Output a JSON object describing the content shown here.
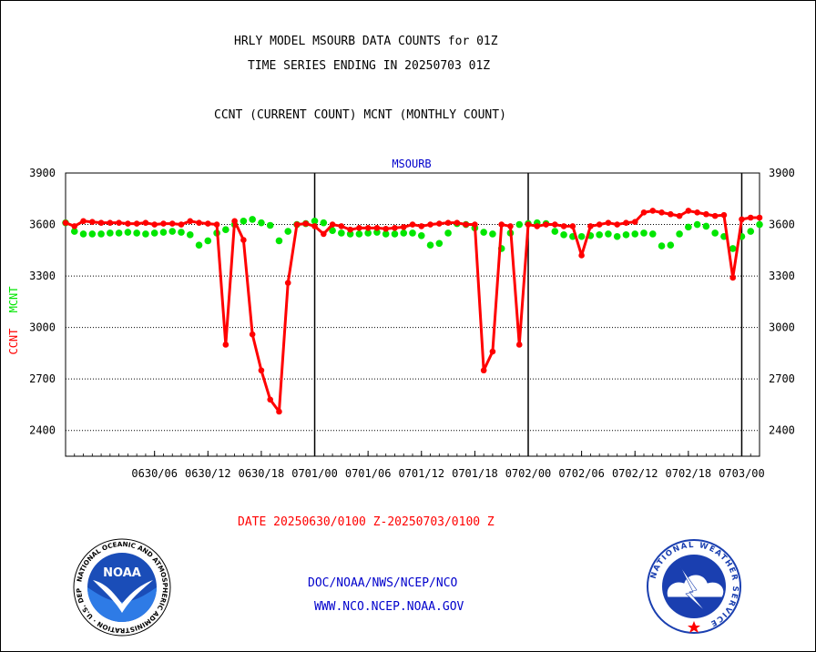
{
  "header": {
    "title_line1": "HRLY MODEL MSOURB DATA COUNTS for 01Z",
    "title_line2": "TIME SERIES ENDING IN 20250703 01Z",
    "subtitle": "CCNT (CURRENT COUNT) MCNT (MONTHLY COUNT)"
  },
  "footer": {
    "date_range": "DATE 20250630/0100 Z-20250703/0100 Z",
    "link1": "DOC/NOAA/NWS/NCEP/NCO",
    "link2": "WWW.NCO.NCEP.NOAA.GOV"
  },
  "logos": {
    "noaa_text": "NOAA",
    "noaa_ring": "NATIONAL OCEANIC AND ATMOSPHERIC ADMINISTRATION · U.S. DEPARTMENT OF COMMERCE ·",
    "nws_ring": "NATIONAL WEATHER SERVICE"
  },
  "colors": {
    "ccnt": "#ff0000",
    "mcnt": "#00e600",
    "panel_title": "#0000cc",
    "link": "#0000cc"
  },
  "chart_data": {
    "type": "line",
    "panel_title": "MSOURB",
    "ylabel_parts": [
      {
        "text": "CCNT",
        "color": "#ff0000"
      },
      {
        "text": "MCNT",
        "color": "#00e600"
      }
    ],
    "ylim": [
      2250,
      3900
    ],
    "yticks": [
      2400,
      2700,
      3000,
      3300,
      3600,
      3900
    ],
    "x_range_hours": [
      -5,
      73
    ],
    "x_ticks": [
      {
        "hour": 5,
        "label": "0630/06"
      },
      {
        "hour": 11,
        "label": "0630/12"
      },
      {
        "hour": 17,
        "label": "0630/18"
      },
      {
        "hour": 23,
        "label": "0701/00"
      },
      {
        "hour": 29,
        "label": "0701/06"
      },
      {
        "hour": 35,
        "label": "0701/12"
      },
      {
        "hour": 41,
        "label": "0701/18"
      },
      {
        "hour": 47,
        "label": "0702/00"
      },
      {
        "hour": 53,
        "label": "0702/06"
      },
      {
        "hour": 59,
        "label": "0702/12"
      },
      {
        "hour": 65,
        "label": "0702/18"
      },
      {
        "hour": 71,
        "label": "0703/00"
      }
    ],
    "day_boundaries_hours": [
      23,
      47,
      71
    ],
    "grid": true,
    "series": [
      {
        "name": "CCNT",
        "color": "#ff0000",
        "values": [
          {
            "x": -5,
            "y": 3610
          },
          {
            "x": -4,
            "y": 3590
          },
          {
            "x": -3,
            "y": 3620
          },
          {
            "x": -2,
            "y": 3615
          },
          {
            "x": -1,
            "y": 3610
          },
          {
            "x": 0,
            "y": 3610
          },
          {
            "x": 1,
            "y": 3610
          },
          {
            "x": 2,
            "y": 3605
          },
          {
            "x": 3,
            "y": 3605
          },
          {
            "x": 4,
            "y": 3610
          },
          {
            "x": 5,
            "y": 3600
          },
          {
            "x": 6,
            "y": 3605
          },
          {
            "x": 7,
            "y": 3605
          },
          {
            "x": 8,
            "y": 3600
          },
          {
            "x": 9,
            "y": 3620
          },
          {
            "x": 10,
            "y": 3610
          },
          {
            "x": 11,
            "y": 3605
          },
          {
            "x": 12,
            "y": 3600
          },
          {
            "x": 13,
            "y": 2900
          },
          {
            "x": 14,
            "y": 3620
          },
          {
            "x": 15,
            "y": 3510
          },
          {
            "x": 16,
            "y": 2960
          },
          {
            "x": 17,
            "y": 2750
          },
          {
            "x": 18,
            "y": 2580
          },
          {
            "x": 19,
            "y": 2510
          },
          {
            "x": 20,
            "y": 3260
          },
          {
            "x": 21,
            "y": 3600
          },
          {
            "x": 22,
            "y": 3605
          },
          {
            "x": 23,
            "y": 3590
          },
          {
            "x": 24,
            "y": 3545
          },
          {
            "x": 25,
            "y": 3600
          },
          {
            "x": 26,
            "y": 3590
          },
          {
            "x": 27,
            "y": 3570
          },
          {
            "x": 28,
            "y": 3580
          },
          {
            "x": 29,
            "y": 3580
          },
          {
            "x": 30,
            "y": 3580
          },
          {
            "x": 31,
            "y": 3575
          },
          {
            "x": 32,
            "y": 3580
          },
          {
            "x": 33,
            "y": 3585
          },
          {
            "x": 34,
            "y": 3600
          },
          {
            "x": 35,
            "y": 3590
          },
          {
            "x": 36,
            "y": 3600
          },
          {
            "x": 37,
            "y": 3605
          },
          {
            "x": 38,
            "y": 3610
          },
          {
            "x": 39,
            "y": 3610
          },
          {
            "x": 40,
            "y": 3600
          },
          {
            "x": 41,
            "y": 3600
          },
          {
            "x": 42,
            "y": 2750
          },
          {
            "x": 43,
            "y": 2860
          },
          {
            "x": 44,
            "y": 3600
          },
          {
            "x": 45,
            "y": 3590
          },
          {
            "x": 46,
            "y": 2900
          },
          {
            "x": 47,
            "y": 3600
          },
          {
            "x": 48,
            "y": 3590
          },
          {
            "x": 49,
            "y": 3600
          },
          {
            "x": 50,
            "y": 3600
          },
          {
            "x": 51,
            "y": 3590
          },
          {
            "x": 52,
            "y": 3590
          },
          {
            "x": 53,
            "y": 3420
          },
          {
            "x": 54,
            "y": 3590
          },
          {
            "x": 55,
            "y": 3600
          },
          {
            "x": 56,
            "y": 3610
          },
          {
            "x": 57,
            "y": 3600
          },
          {
            "x": 58,
            "y": 3610
          },
          {
            "x": 59,
            "y": 3615
          },
          {
            "x": 60,
            "y": 3670
          },
          {
            "x": 61,
            "y": 3680
          },
          {
            "x": 62,
            "y": 3670
          },
          {
            "x": 63,
            "y": 3660
          },
          {
            "x": 64,
            "y": 3650
          },
          {
            "x": 65,
            "y": 3680
          },
          {
            "x": 66,
            "y": 3670
          },
          {
            "x": 67,
            "y": 3660
          },
          {
            "x": 68,
            "y": 3650
          },
          {
            "x": 69,
            "y": 3655
          },
          {
            "x": 70,
            "y": 3290
          },
          {
            "x": 71,
            "y": 3630
          },
          {
            "x": 72,
            "y": 3640
          },
          {
            "x": 73,
            "y": 3640
          }
        ]
      },
      {
        "name": "MCNT",
        "color": "#00e600",
        "values": [
          {
            "x": -5,
            "y": 3610
          },
          {
            "x": -4,
            "y": 3560
          },
          {
            "x": -3,
            "y": 3545
          },
          {
            "x": -2,
            "y": 3545
          },
          {
            "x": -1,
            "y": 3545
          },
          {
            "x": 0,
            "y": 3550
          },
          {
            "x": 1,
            "y": 3550
          },
          {
            "x": 2,
            "y": 3555
          },
          {
            "x": 3,
            "y": 3550
          },
          {
            "x": 4,
            "y": 3545
          },
          {
            "x": 5,
            "y": 3550
          },
          {
            "x": 6,
            "y": 3555
          },
          {
            "x": 7,
            "y": 3560
          },
          {
            "x": 8,
            "y": 3555
          },
          {
            "x": 9,
            "y": 3540
          },
          {
            "x": 10,
            "y": 3480
          },
          {
            "x": 11,
            "y": 3505
          },
          {
            "x": 12,
            "y": 3550
          },
          {
            "x": 13,
            "y": 3570
          },
          {
            "x": 14,
            "y": 3600
          },
          {
            "x": 15,
            "y": 3620
          },
          {
            "x": 16,
            "y": 3630
          },
          {
            "x": 17,
            "y": 3610
          },
          {
            "x": 18,
            "y": 3595
          },
          {
            "x": 19,
            "y": 3505
          },
          {
            "x": 20,
            "y": 3560
          },
          {
            "x": 21,
            "y": 3600
          },
          {
            "x": 22,
            "y": 3605
          },
          {
            "x": 23,
            "y": 3620
          },
          {
            "x": 24,
            "y": 3610
          },
          {
            "x": 25,
            "y": 3565
          },
          {
            "x": 26,
            "y": 3550
          },
          {
            "x": 27,
            "y": 3545
          },
          {
            "x": 28,
            "y": 3545
          },
          {
            "x": 29,
            "y": 3550
          },
          {
            "x": 30,
            "y": 3555
          },
          {
            "x": 31,
            "y": 3545
          },
          {
            "x": 32,
            "y": 3545
          },
          {
            "x": 33,
            "y": 3550
          },
          {
            "x": 34,
            "y": 3550
          },
          {
            "x": 35,
            "y": 3535
          },
          {
            "x": 36,
            "y": 3480
          },
          {
            "x": 37,
            "y": 3490
          },
          {
            "x": 38,
            "y": 3550
          },
          {
            "x": 39,
            "y": 3605
          },
          {
            "x": 40,
            "y": 3600
          },
          {
            "x": 41,
            "y": 3580
          },
          {
            "x": 42,
            "y": 3555
          },
          {
            "x": 43,
            "y": 3545
          },
          {
            "x": 44,
            "y": 3460
          },
          {
            "x": 45,
            "y": 3550
          },
          {
            "x": 46,
            "y": 3600
          },
          {
            "x": 47,
            "y": 3605
          },
          {
            "x": 48,
            "y": 3610
          },
          {
            "x": 49,
            "y": 3605
          },
          {
            "x": 50,
            "y": 3560
          },
          {
            "x": 51,
            "y": 3540
          },
          {
            "x": 52,
            "y": 3530
          },
          {
            "x": 53,
            "y": 3530
          },
          {
            "x": 54,
            "y": 3535
          },
          {
            "x": 55,
            "y": 3540
          },
          {
            "x": 56,
            "y": 3545
          },
          {
            "x": 57,
            "y": 3530
          },
          {
            "x": 58,
            "y": 3540
          },
          {
            "x": 59,
            "y": 3545
          },
          {
            "x": 60,
            "y": 3550
          },
          {
            "x": 61,
            "y": 3545
          },
          {
            "x": 62,
            "y": 3475
          },
          {
            "x": 63,
            "y": 3480
          },
          {
            "x": 64,
            "y": 3545
          },
          {
            "x": 65,
            "y": 3585
          },
          {
            "x": 66,
            "y": 3600
          },
          {
            "x": 67,
            "y": 3590
          },
          {
            "x": 68,
            "y": 3550
          },
          {
            "x": 69,
            "y": 3530
          },
          {
            "x": 70,
            "y": 3460
          },
          {
            "x": 71,
            "y": 3530
          },
          {
            "x": 72,
            "y": 3560
          },
          {
            "x": 73,
            "y": 3600
          }
        ]
      }
    ]
  }
}
